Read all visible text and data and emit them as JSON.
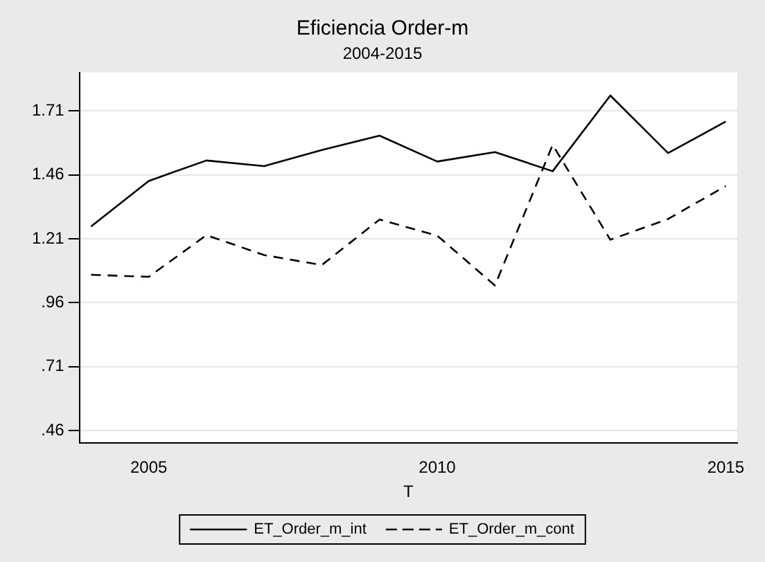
{
  "chart_data": {
    "type": "line",
    "title": "Eficiencia Order-m",
    "subtitle": "2004-2015",
    "xlabel": "T",
    "x": [
      2004,
      2005,
      2006,
      2007,
      2008,
      2009,
      2010,
      2011,
      2012,
      2013,
      2014,
      2015
    ],
    "series": [
      {
        "name": "ET_Order_m_int",
        "color": "#000000",
        "line_style": "solid",
        "values": [
          1.258,
          1.436,
          1.516,
          1.494,
          1.557,
          1.613,
          1.512,
          1.549,
          1.474,
          1.77,
          1.545,
          1.668
        ]
      },
      {
        "name": "ET_Order_m_cont",
        "color": "#000000",
        "line_style": "dashed",
        "values": [
          1.069,
          1.061,
          1.224,
          1.146,
          1.107,
          1.285,
          1.222,
          1.027,
          1.577,
          1.206,
          1.287,
          1.416
        ]
      }
    ],
    "xlim": [
      2003.8,
      2015.2
    ],
    "xticks": [
      2005,
      2010,
      2015
    ],
    "ylim": [
      0.41,
      1.86
    ],
    "yticks": [
      {
        "value": 0.46,
        "label": ".46"
      },
      {
        "value": 0.71,
        "label": ".71"
      },
      {
        "value": 0.96,
        "label": ".96"
      },
      1.21,
      1.46,
      1.71
    ],
    "grid": "y",
    "legend": "bottom",
    "marker": "none"
  }
}
